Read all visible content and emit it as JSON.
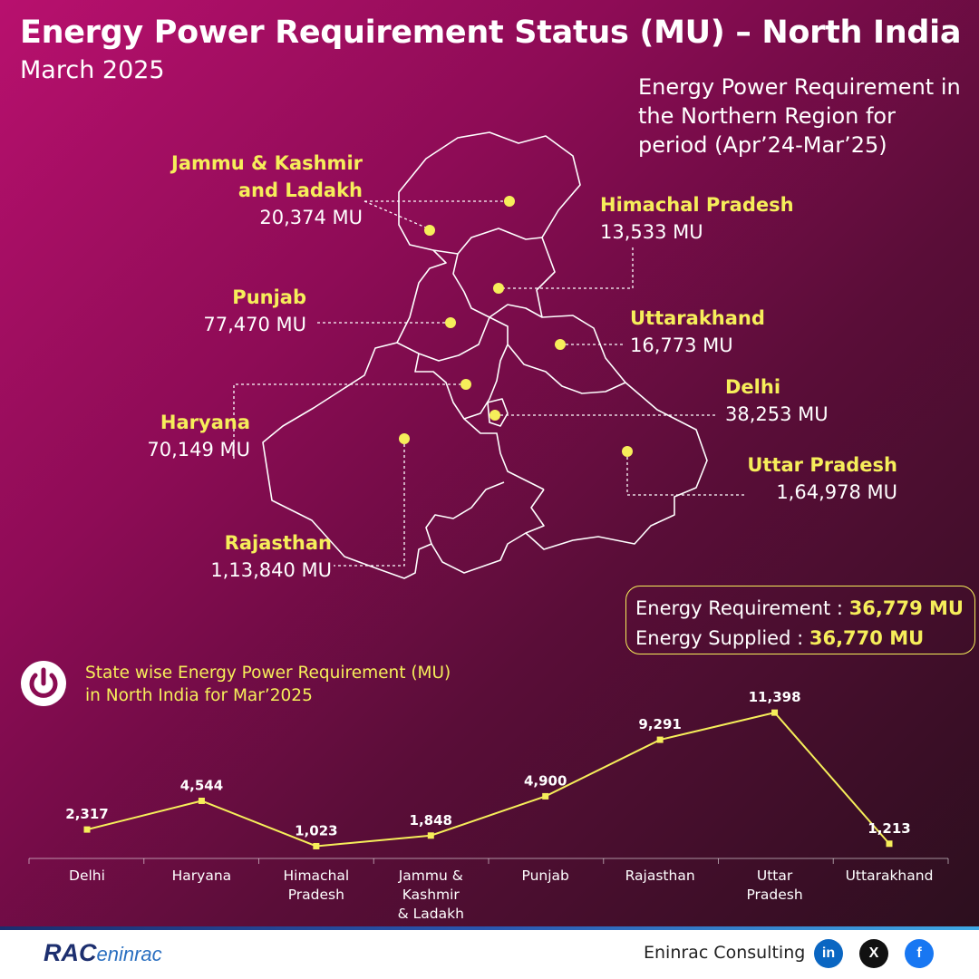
{
  "header": {
    "title": "Energy Power Requirement Status (MU) – North India",
    "subtitle": "March 2025",
    "period_note": "Energy Power Requirement in the Northern Region for period (Apr’24-Mar’25)"
  },
  "map": {
    "states": [
      {
        "name_line1": "Jammu & Kashmir",
        "name_line2": "and Ladakh",
        "value": "20,374 MU"
      },
      {
        "name": "Himachal Pradesh",
        "value": "13,533 MU"
      },
      {
        "name": "Punjab",
        "value": "77,470 MU"
      },
      {
        "name": "Uttarakhand",
        "value": "16,773 MU"
      },
      {
        "name": "Haryana",
        "value": "70,149 MU"
      },
      {
        "name": "Delhi",
        "value": "38,253 MU"
      },
      {
        "name": "Uttar Pradesh",
        "value": "1,64,978 MU"
      },
      {
        "name": "Rajasthan",
        "value": "1,13,840 MU"
      }
    ]
  },
  "totals": {
    "requirement_label": "Energy Requirement : ",
    "requirement_value": "36,779 MU",
    "supplied_label": "Energy Supplied : ",
    "supplied_value": "36,770 MU"
  },
  "chart_section": {
    "icon": "power-icon",
    "title_line1": "State wise Energy Power Requirement (MU)",
    "title_line2": "in North India for Mar’2025"
  },
  "chart_data": {
    "type": "line",
    "title": "State wise Energy Power Requirement (MU) in North India for Mar’2025",
    "categories": [
      "Delhi",
      "Haryana",
      "Himachal Pradesh",
      "Jammu & Kashmir & Ladakh",
      "Punjab",
      "Rajasthan",
      "Uttar Pradesh",
      "Uttarakhand"
    ],
    "category_lines": [
      [
        "Delhi"
      ],
      [
        "Haryana"
      ],
      [
        "Himachal",
        "Pradesh"
      ],
      [
        "Jammu &",
        "Kashmir",
        "& Ladakh"
      ],
      [
        "Punjab"
      ],
      [
        "Rajasthan"
      ],
      [
        "Uttar",
        "Pradesh"
      ],
      [
        "Uttarakhand"
      ]
    ],
    "values": [
      2317,
      4544,
      1023,
      1848,
      4900,
      9291,
      11398,
      1213
    ],
    "value_labels": [
      "2,317",
      "4,544",
      "1,023",
      "1,848",
      "4,900",
      "9,291",
      "11,398",
      "1,213"
    ],
    "line_color": "#f6ee5a",
    "grid": false
  },
  "footer": {
    "logo_rac": "RAC",
    "logo_eninrac": "eninrac",
    "company": "Eninrac Consulting",
    "social": [
      "in",
      "X",
      "f"
    ]
  },
  "colors": {
    "accent_yellow": "#f6ee5a",
    "background_top": "#b8106e",
    "background_bottom": "#2c0f1e",
    "linkedin": "#0a66c2",
    "x": "#111111",
    "facebook": "#1877f2"
  }
}
